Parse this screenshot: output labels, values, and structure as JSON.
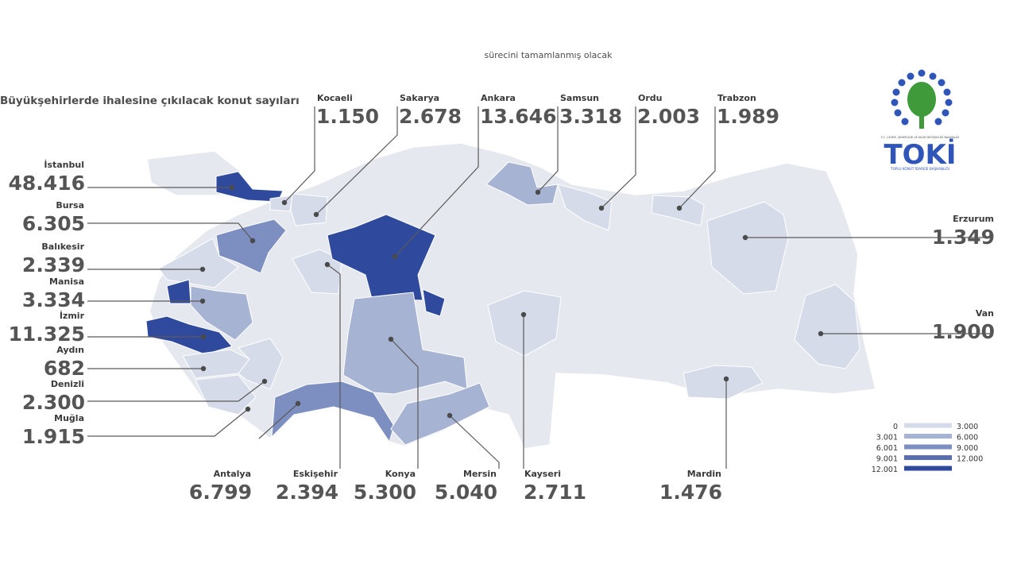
{
  "header": {
    "caption": "sürecini tamamlanmış olacak",
    "title": "Büyükşehirlerde ihalesine çıkılacak konut sayıları"
  },
  "logo": {
    "org": "T.C. ÇEVRE, ŞEHİRCİLİK VE İKLİM DEĞİŞİKLİĞİ BAKANLIĞI",
    "name": "TOKİ",
    "subtitle": "TOPLU KONUT İDARESİ BAŞKANLIĞI"
  },
  "provinces": [
    {
      "name": "Kocaeli",
      "value": "1.150"
    },
    {
      "name": "Sakarya",
      "value": "2.678"
    },
    {
      "name": "Ankara",
      "value": "13.646"
    },
    {
      "name": "Samsun",
      "value": "3.318"
    },
    {
      "name": "Ordu",
      "value": "2.003"
    },
    {
      "name": "Trabzon",
      "value": "1.989"
    },
    {
      "name": "İstanbul",
      "value": "48.416"
    },
    {
      "name": "Bursa",
      "value": "6.305"
    },
    {
      "name": "Balıkesir",
      "value": "2.339"
    },
    {
      "name": "Manisa",
      "value": "3.334"
    },
    {
      "name": "İzmir",
      "value": "11.325"
    },
    {
      "name": "Aydın",
      "value": "682"
    },
    {
      "name": "Denizli",
      "value": "2.300"
    },
    {
      "name": "Muğla",
      "value": "1.915"
    },
    {
      "name": "Antalya",
      "value": "6.799"
    },
    {
      "name": "Eskişehir",
      "value": "2.394"
    },
    {
      "name": "Konya",
      "value": "5.300"
    },
    {
      "name": "Mersin",
      "value": "5.040"
    },
    {
      "name": "Kayseri",
      "value": "2.711"
    },
    {
      "name": "Mardin",
      "value": "1.476"
    },
    {
      "name": "Erzurum",
      "value": "1.349"
    },
    {
      "name": "Van",
      "value": "1.900"
    }
  ],
  "legend": [
    {
      "from": "0",
      "to": "3.000"
    },
    {
      "from": "3.001",
      "to": "6.000"
    },
    {
      "from": "6.001",
      "to": "9.000"
    },
    {
      "from": "9.001",
      "to": "12.000"
    },
    {
      "from": "12.001"
    }
  ]
}
